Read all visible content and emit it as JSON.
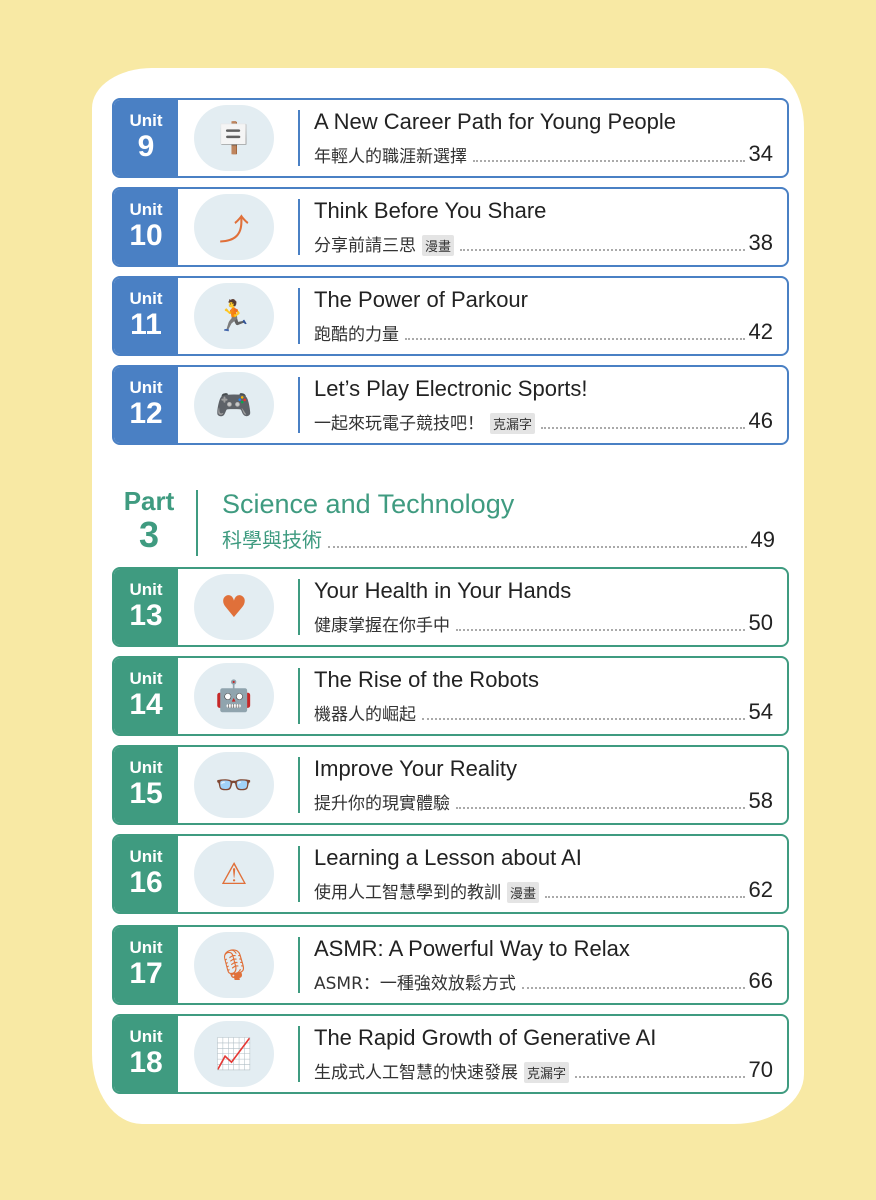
{
  "units": [
    {
      "unit_label": "Unit",
      "number": "9",
      "title": "A New Career Path for Young People",
      "subtitle": "年輕人的職涯新選擇",
      "tag": "",
      "page": "34",
      "color": "blue",
      "icon": "signpost-icon"
    },
    {
      "unit_label": "Unit",
      "number": "10",
      "title": "Think Before You Share",
      "subtitle": "分享前請三思",
      "tag": "漫畫",
      "page": "38",
      "color": "blue",
      "icon": "share-icon"
    },
    {
      "unit_label": "Unit",
      "number": "11",
      "title": "The Power of Parkour",
      "subtitle": "跑酷的力量",
      "tag": "",
      "page": "42",
      "color": "blue",
      "icon": "parkour-icon"
    },
    {
      "unit_label": "Unit",
      "number": "12",
      "title": "Let’s Play Electronic Sports!",
      "subtitle": "一起來玩電子競技吧！",
      "tag": "克漏字",
      "page": "46",
      "color": "blue",
      "icon": "esports-icon"
    },
    {
      "unit_label": "Unit",
      "number": "13",
      "title": "Your Health in Your Hands",
      "subtitle": "健康掌握在你手中",
      "tag": "",
      "page": "50",
      "color": "green",
      "icon": "heart-hand-icon"
    },
    {
      "unit_label": "Unit",
      "number": "14",
      "title": "The Rise of the Robots",
      "subtitle": "機器人的崛起",
      "tag": "",
      "page": "54",
      "color": "green",
      "icon": "robot-icon"
    },
    {
      "unit_label": "Unit",
      "number": "15",
      "title": "Improve Your Reality",
      "subtitle": "提升你的現實體驗",
      "tag": "",
      "page": "58",
      "color": "green",
      "icon": "vr-headset-icon"
    },
    {
      "unit_label": "Unit",
      "number": "16",
      "title": "Learning a Lesson about AI",
      "subtitle": "使用人工智慧學到的教訓",
      "tag": "漫畫",
      "page": "62",
      "color": "green",
      "icon": "ai-warning-icon"
    },
    {
      "unit_label": "Unit",
      "number": "17",
      "title": "ASMR: A Powerful Way to Relax",
      "subtitle": "ASMR：一種強效放鬆方式",
      "tag": "",
      "page": "66",
      "color": "green",
      "icon": "microphone-headphones-icon"
    },
    {
      "unit_label": "Unit",
      "number": "18",
      "title": "The Rapid Growth of Generative AI",
      "subtitle": "生成式人工智慧的快速發展",
      "tag": "克漏字",
      "page": "70",
      "color": "green",
      "icon": "ai-growth-chart-icon"
    }
  ],
  "part": {
    "label": "Part",
    "number": "3",
    "title": "Science and Technology",
    "subtitle": "科學與技術",
    "page": "49"
  },
  "colors": {
    "blue": "#4a80c4",
    "green": "#3f9b80",
    "background": "#f8e9a4"
  }
}
